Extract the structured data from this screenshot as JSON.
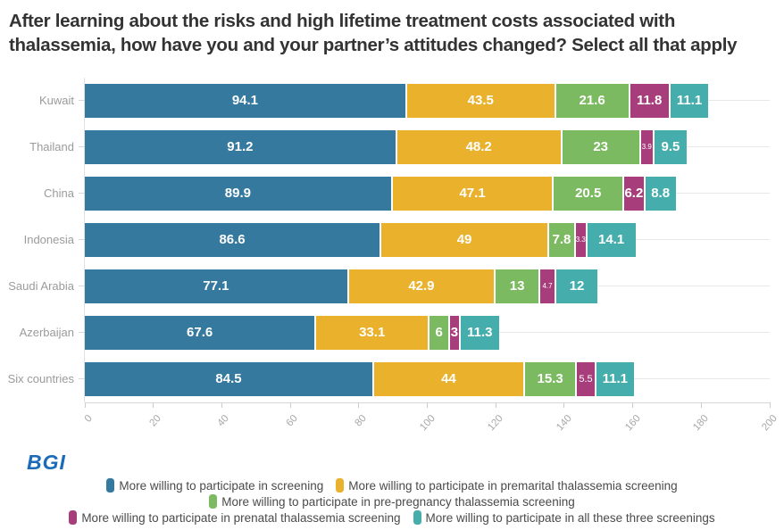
{
  "title": "After learning about the risks and high lifetime treatment costs associated with thalassemia, how have you and your partner’s attitudes changed? Select all that apply",
  "logo": "BGI",
  "colors": {
    "blue": "#35799f",
    "yellow": "#eab22c",
    "green": "#7cba61",
    "purple": "#a73e7b",
    "teal": "#45aeac",
    "title_text": "#333333",
    "axis_text": "#9b9b9b",
    "gridline": "#e8e8e8",
    "logo_blue": "#1b6cb8"
  },
  "chart_data": {
    "type": "bar",
    "orientation": "horizontal",
    "stacked": true,
    "categories": [
      "Kuwait",
      "Thailand",
      "China",
      "Indonesia",
      "Saudi Arabia",
      "Azerbaijan",
      "Six countries"
    ],
    "series": [
      {
        "name": "More willing to participate in screening",
        "color": "#35799f",
        "values": [
          94.1,
          91.2,
          89.9,
          86.6,
          77.1,
          67.6,
          84.5
        ]
      },
      {
        "name": "More willing to participate in premarital thalassemia screening",
        "color": "#eab22c",
        "values": [
          43.5,
          48.2,
          47.1,
          49,
          42.9,
          33.1,
          44
        ]
      },
      {
        "name": "More willing to participate in pre-pregnancy thalassemia screening",
        "color": "#7cba61",
        "values": [
          21.6,
          23,
          20.5,
          7.8,
          13,
          6,
          15.3
        ]
      },
      {
        "name": "More willing to participate in prenatal thalassemia screening",
        "color": "#a73e7b",
        "values": [
          11.8,
          3.9,
          6.2,
          3.3,
          4.7,
          3,
          5.5
        ]
      },
      {
        "name": "More willing to participate in all these three screenings",
        "color": "#45aeac",
        "values": [
          11.1,
          9.5,
          8.8,
          14.1,
          12,
          11.3,
          11.1
        ]
      }
    ],
    "xlabel": "",
    "ylabel": "",
    "xlim": [
      0,
      200
    ],
    "xticks": [
      0,
      20,
      40,
      60,
      80,
      100,
      120,
      140,
      160,
      180,
      200
    ],
    "grid": "horizontal category lines",
    "legend_position": "bottom",
    "legend_rows": [
      [
        0,
        1
      ],
      [
        2
      ],
      [
        3,
        4
      ]
    ]
  }
}
